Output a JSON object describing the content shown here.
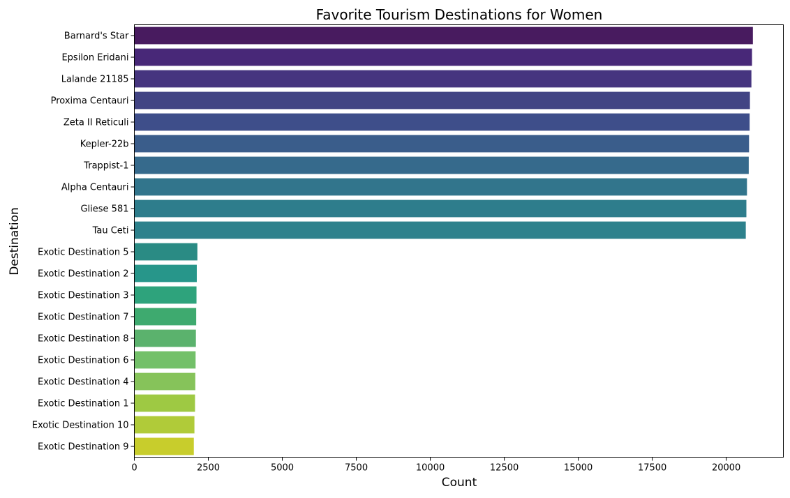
{
  "chart_data": {
    "type": "bar",
    "orientation": "horizontal",
    "title": "Favorite Tourism Destinations for Women",
    "xlabel": "Count",
    "ylabel": "Destination",
    "xlim": [
      0,
      21930
    ],
    "xticks": [
      0,
      2500,
      5000,
      7500,
      10000,
      12500,
      15000,
      17500,
      20000
    ],
    "grid": false,
    "categories": [
      "Barnard's Star",
      "Epsilon Eridani",
      "Lalande 21185",
      "Proxima Centauri",
      "Zeta II Reticuli",
      "Kepler-22b",
      "Trappist-1",
      "Alpha Centauri",
      "Gliese 581",
      "Tau Ceti",
      "Exotic Destination 5",
      "Exotic Destination 2",
      "Exotic Destination 3",
      "Exotic Destination 7",
      "Exotic Destination 8",
      "Exotic Destination 6",
      "Exotic Destination 4",
      "Exotic Destination 1",
      "Exotic Destination 10",
      "Exotic Destination 9"
    ],
    "values": [
      20900,
      20870,
      20850,
      20800,
      20790,
      20770,
      20760,
      20700,
      20680,
      20660,
      2130,
      2110,
      2100,
      2090,
      2080,
      2070,
      2060,
      2050,
      2030,
      2010
    ],
    "colors": [
      "#481b5f",
      "#482878",
      "#46357f",
      "#424484",
      "#3e4e8a",
      "#3a5d8b",
      "#366a8c",
      "#32758c",
      "#2e7d8c",
      "#2d818c",
      "#2a8b84",
      "#27968a",
      "#2ea37c",
      "#3eaa6f",
      "#5bb26d",
      "#73c069",
      "#86c35a",
      "#9ec943",
      "#b0cb39",
      "#c8cd2c"
    ]
  }
}
